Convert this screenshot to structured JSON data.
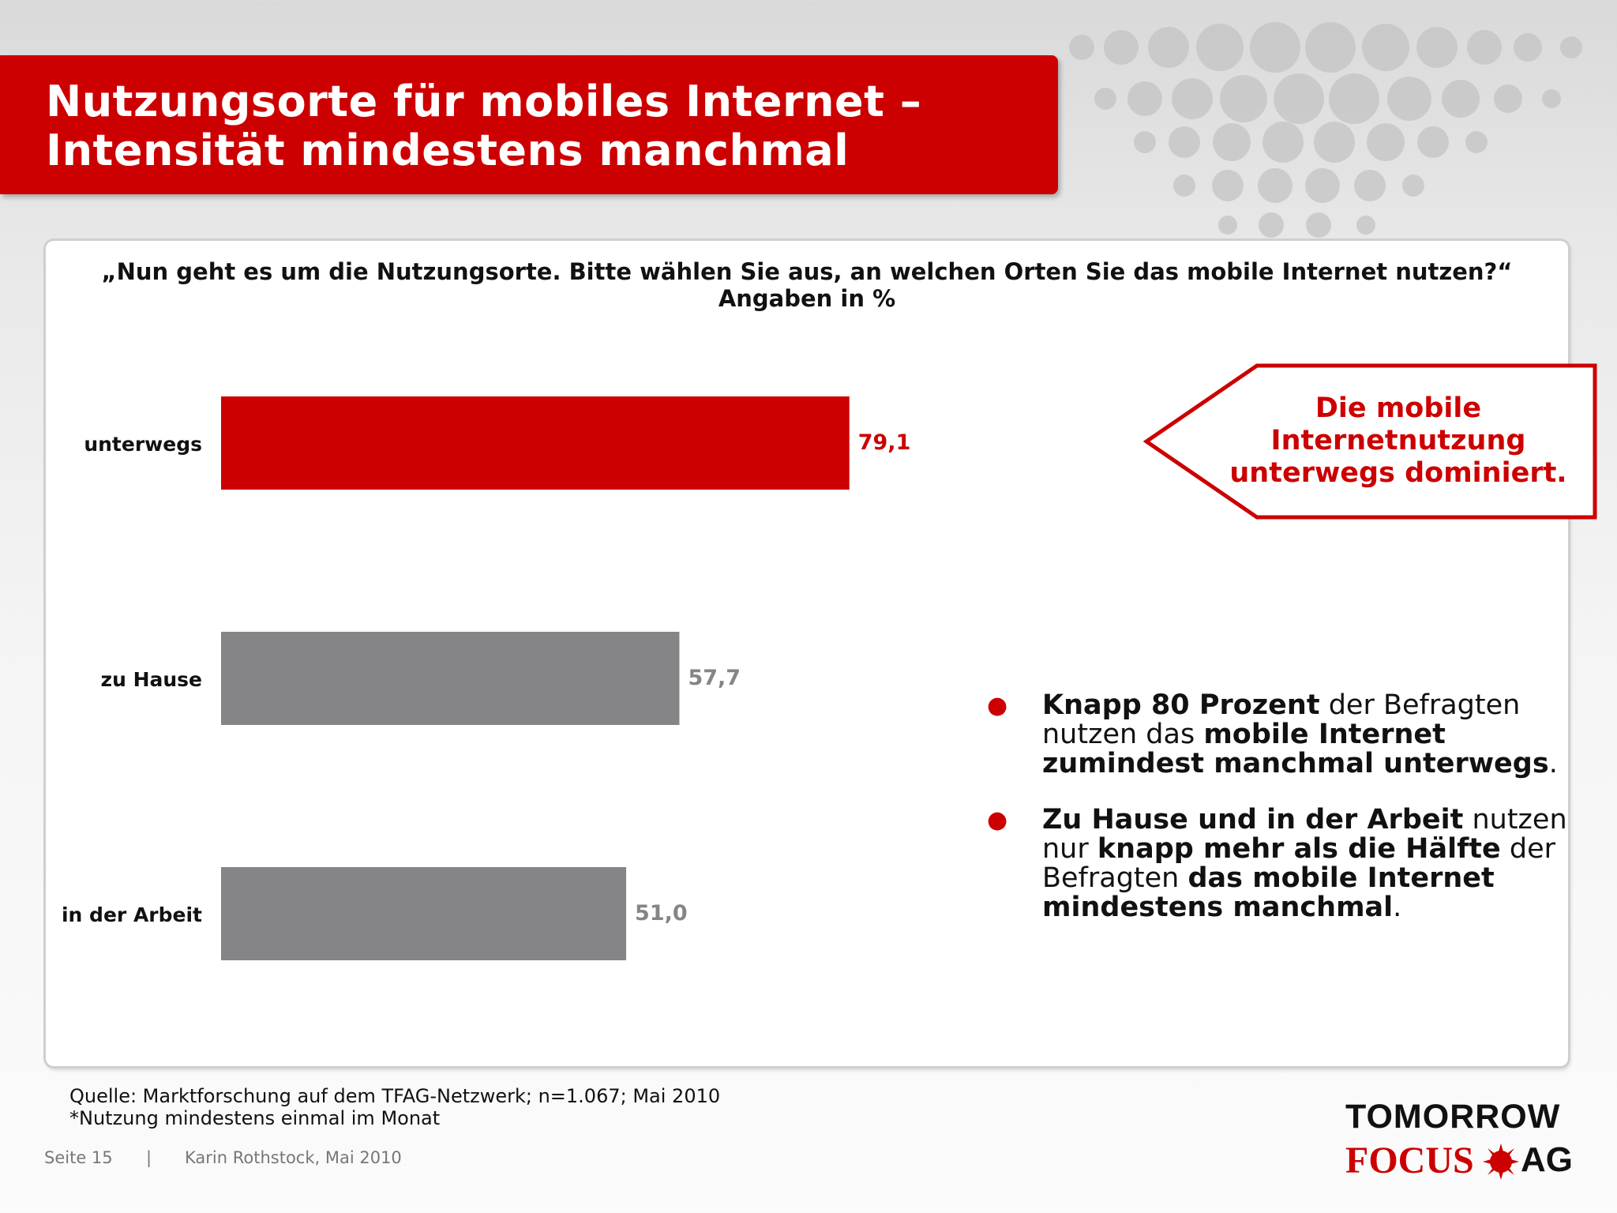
{
  "title": {
    "line1": "Nutzungsorte für mobiles Internet –",
    "line2": "Intensität mindestens manchmal"
  },
  "question": {
    "line1": "„Nun geht es um die Nutzungsorte. Bitte wählen Sie aus, an welchen Orten Sie das mobile Internet nutzen?“",
    "line2": "Angaben in %"
  },
  "chart_data": {
    "type": "bar",
    "orientation": "horizontal",
    "categories": [
      "unterwegs",
      "zu Hause",
      "in der Arbeit"
    ],
    "values": [
      79.1,
      57.7,
      51.0
    ],
    "value_labels": [
      "79,1",
      "57,7",
      "51,0"
    ],
    "bar_colors": [
      "#cc0000",
      "#858487",
      "#858487"
    ],
    "label_colors": [
      "#cc0000",
      "#858487",
      "#858487"
    ],
    "xlim": [
      0,
      100
    ],
    "grid": false,
    "legend": "none",
    "xlabel": "",
    "ylabel": ""
  },
  "callout": {
    "line1": "Die mobile",
    "line2": "Internetnutzung",
    "line3": "unterwegs dominiert."
  },
  "bullets": [
    {
      "parts": [
        {
          "t": "Knapp 80 Prozent",
          "b": true
        },
        {
          "t": " der Befragten nutzen das ",
          "b": false
        },
        {
          "t": "mobile Internet zumindest manchmal unterwegs",
          "b": true
        },
        {
          "t": ".",
          "b": false
        }
      ]
    },
    {
      "parts": [
        {
          "t": "Zu Hause und in der Arbeit",
          "b": true
        },
        {
          "t": " nutzen nur ",
          "b": false
        },
        {
          "t": "knapp mehr als die Hälfte",
          "b": true
        },
        {
          "t": " der Befragten ",
          "b": false
        },
        {
          "t": "das mobile Internet mindestens manchmal",
          "b": true
        },
        {
          "t": ".",
          "b": false
        }
      ]
    }
  ],
  "source": {
    "line1": "Quelle: Marktforschung auf dem TFAG-Netzwerk; n=1.067; Mai 2010",
    "line2": "*Nutzung mindestens einmal im Monat"
  },
  "footer": {
    "page": "Seite 15",
    "separator": "|",
    "author": "Karin Rothstock, Mai 2010"
  },
  "logo": {
    "line1": "TOMORROW",
    "focus": "FOCUS",
    "ag": "AG"
  },
  "colors": {
    "accent": "#cc0000",
    "gray_bar": "#858487"
  }
}
